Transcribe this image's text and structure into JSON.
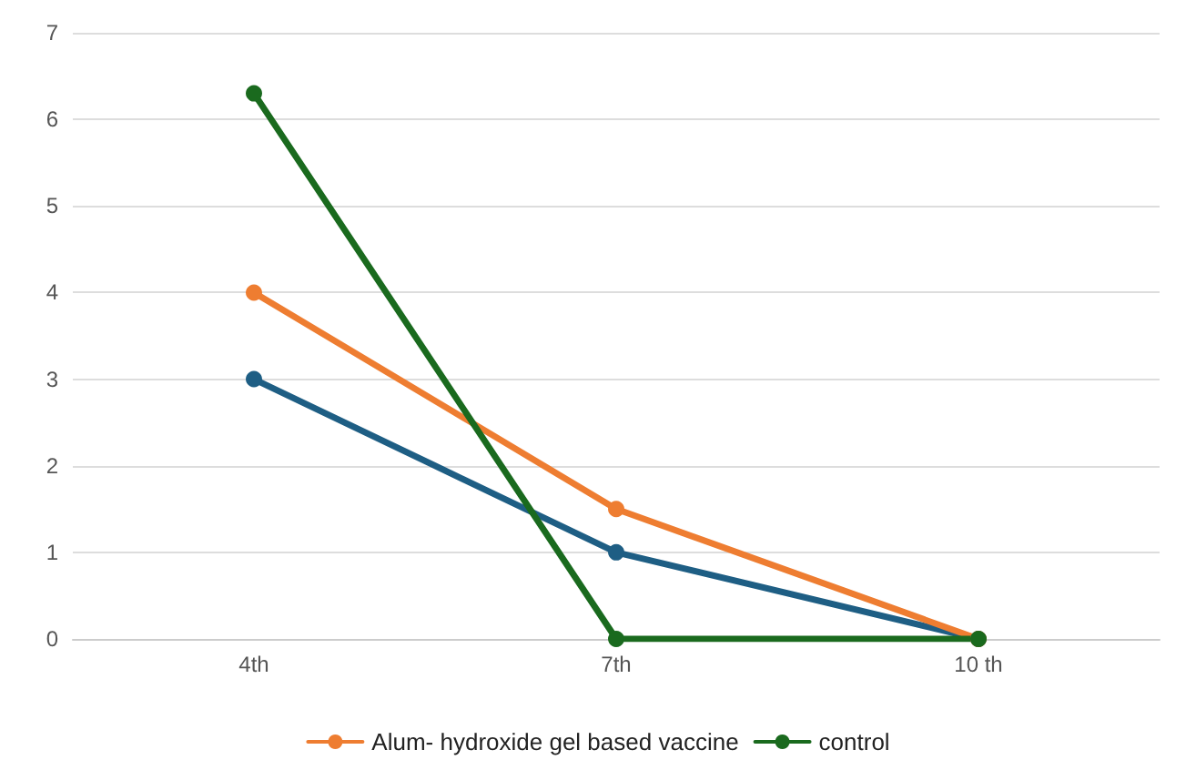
{
  "chart_data": {
    "type": "line",
    "categories": [
      "4th",
      "7th",
      "10 th"
    ],
    "series": [
      {
        "color": "#1e5e84",
        "values": [
          3,
          1,
          0
        ]
      },
      {
        "name": "Alum- hydroxide gel based vaccine",
        "color": "#ee7d31",
        "values": [
          4,
          1.5,
          0
        ]
      },
      {
        "name": "control",
        "color": "#1a6a1e",
        "values": [
          6.3,
          0,
          0
        ]
      }
    ],
    "ylim": [
      0,
      7
    ],
    "yticks": [
      0,
      1,
      2,
      3,
      4,
      5,
      6,
      7
    ],
    "grid": "y",
    "legend": "bottom",
    "marker": "circle",
    "line_style": "solid"
  }
}
